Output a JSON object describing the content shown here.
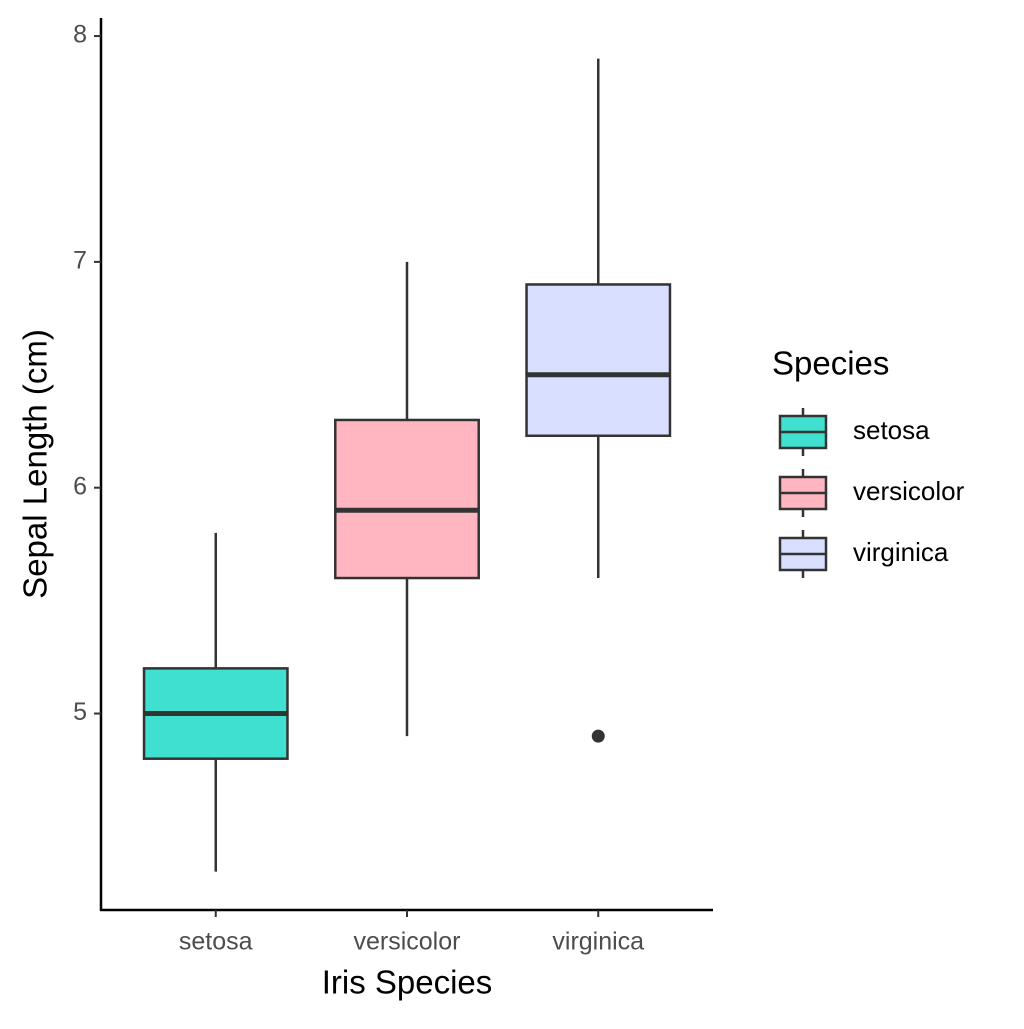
{
  "chart_data": {
    "type": "boxplot",
    "x_label": "Iris Species",
    "y_label": "Sepal Length (cm)",
    "categories": [
      "setosa",
      "versicolor",
      "virginica"
    ],
    "colors": [
      "#40e0d0",
      "#ffb6c1",
      "#d8dfff"
    ],
    "boxes": [
      {
        "low": 4.3,
        "q1": 4.8,
        "median": 5.0,
        "q3": 5.2,
        "high": 5.8,
        "outliers": []
      },
      {
        "low": 4.9,
        "q1": 5.6,
        "median": 5.9,
        "q3": 6.3,
        "high": 7.0,
        "outliers": []
      },
      {
        "low": 5.6,
        "q1": 6.23,
        "median": 6.5,
        "q3": 6.9,
        "high": 7.9,
        "outliers": [
          4.9
        ]
      }
    ],
    "ylim": [
      4.13,
      8.08
    ],
    "yticks": [
      5,
      6,
      7,
      8
    ],
    "legend_title": "Species",
    "legend_position": "right"
  }
}
